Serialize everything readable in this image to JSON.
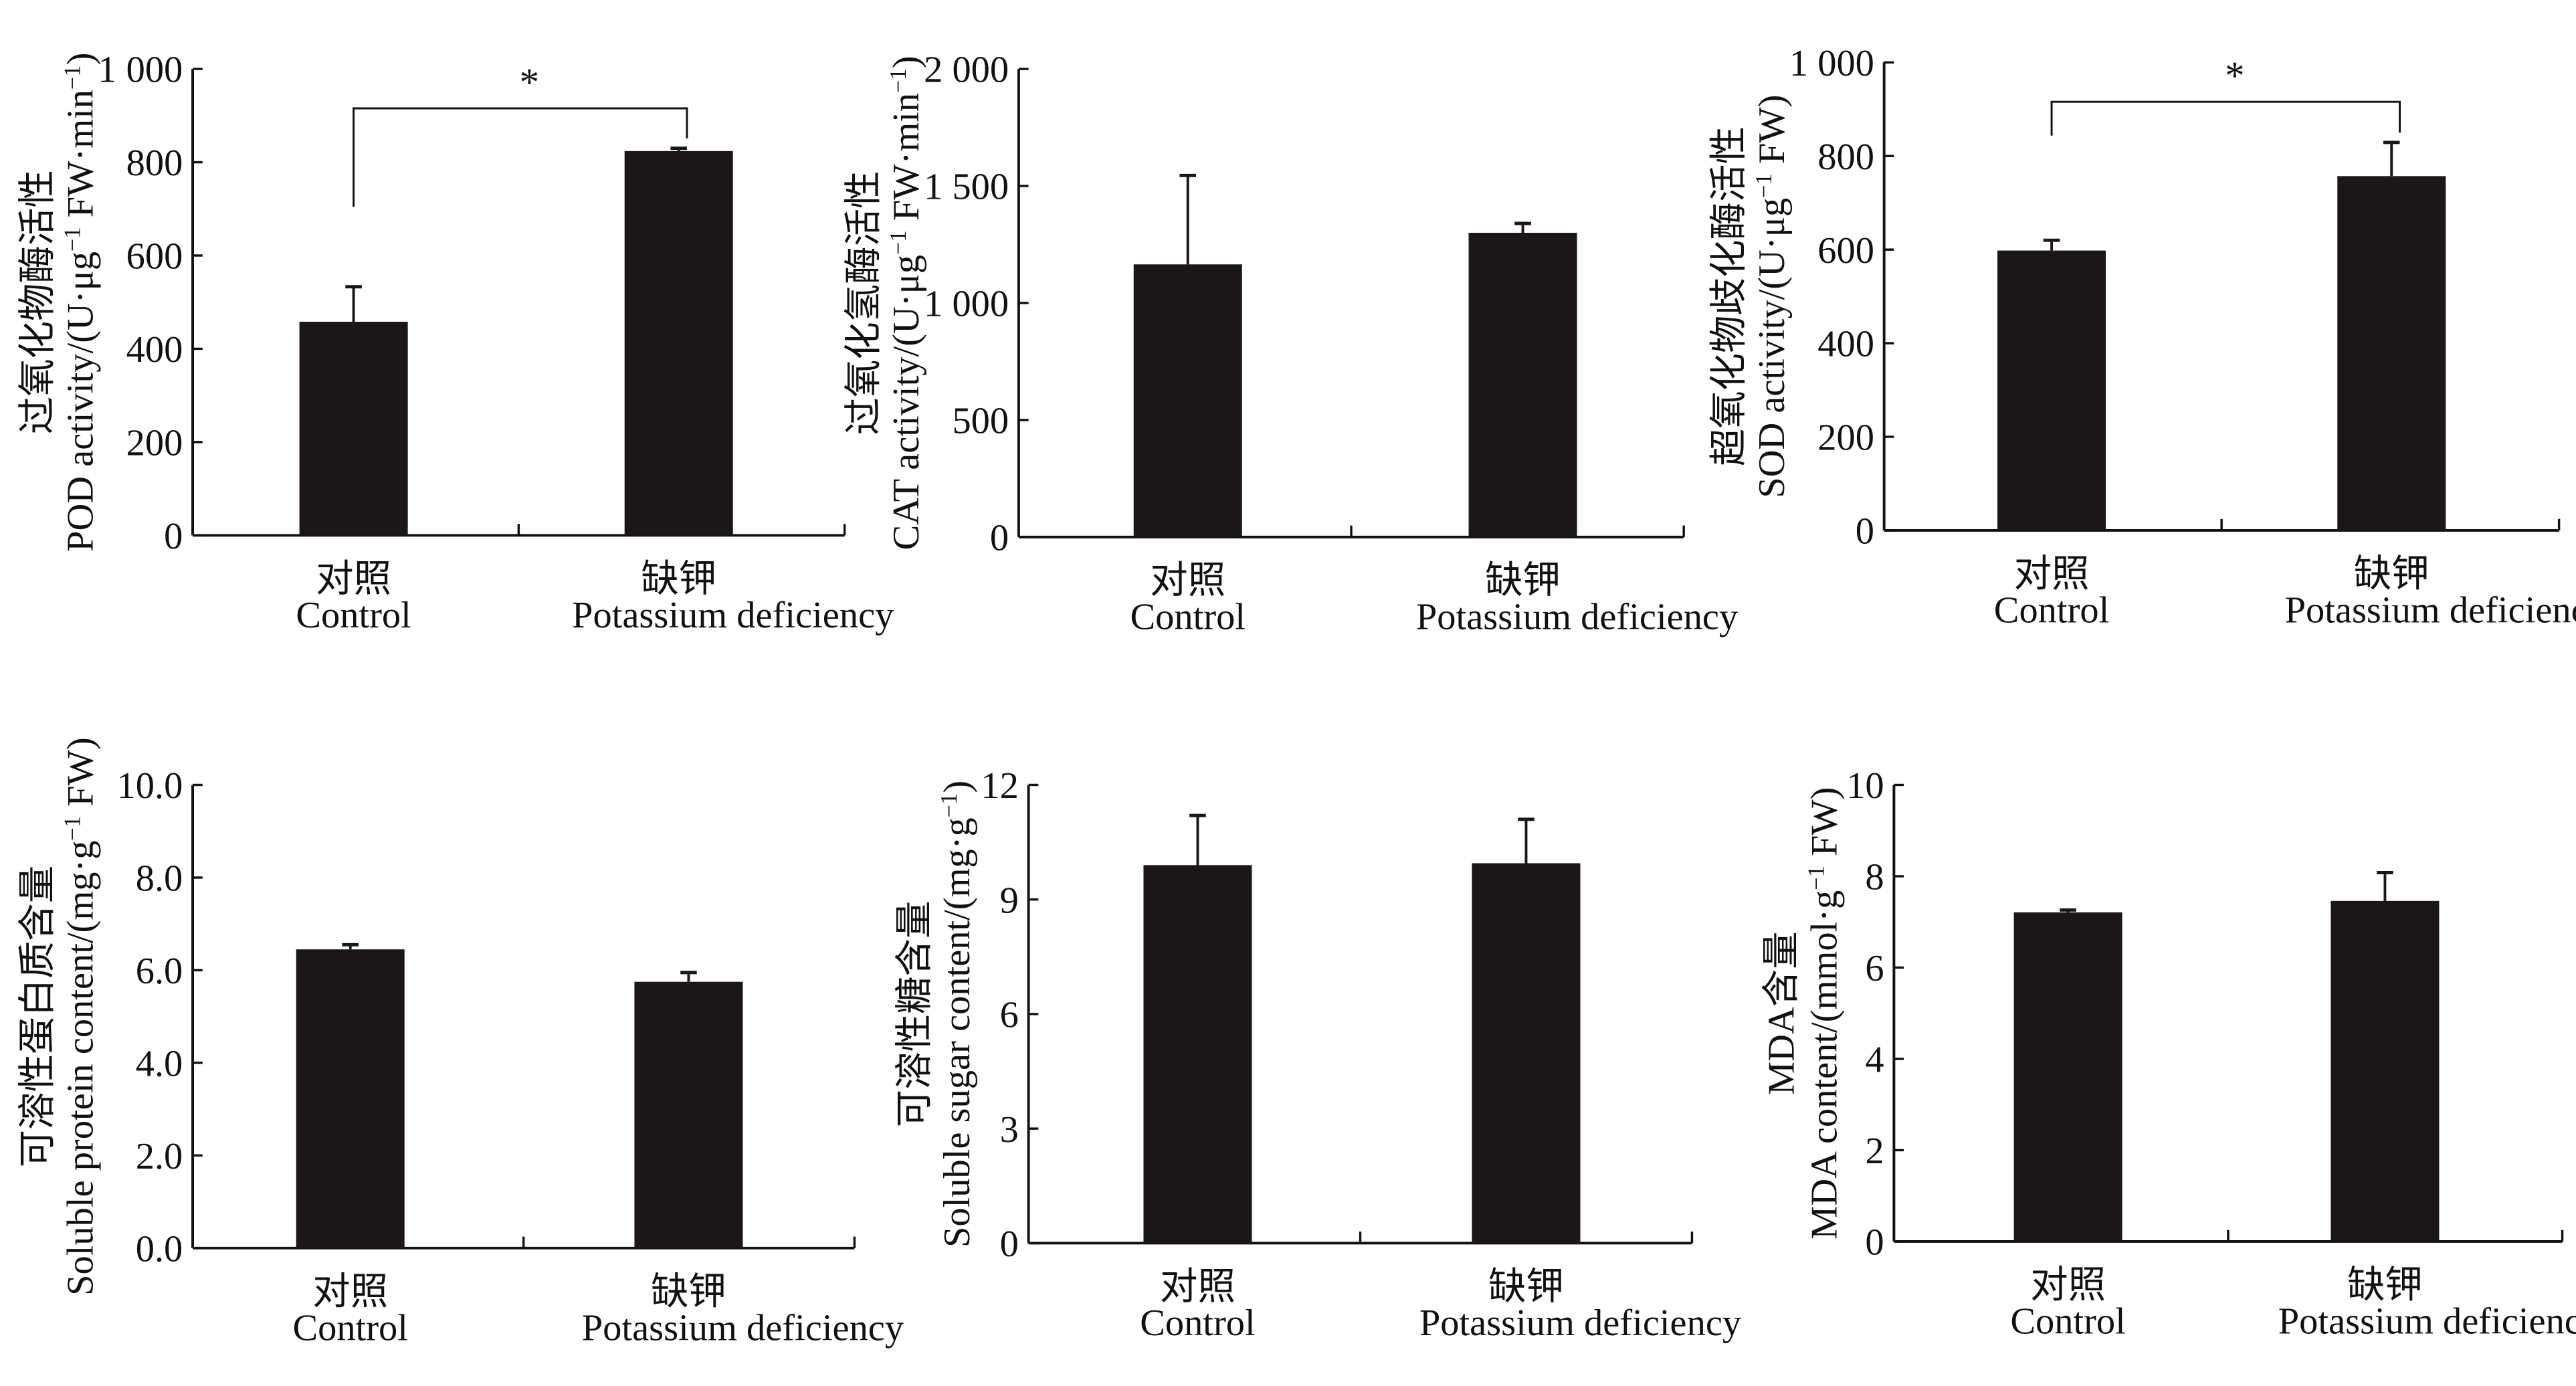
{
  "chart_data": [
    {
      "type": "bar",
      "ylabel_cn": "过氧化物酶活性",
      "ylabel_en": "POD activity/(U·μg",
      "ylabel_sup": "−1",
      "ylabel_en2": " FW·min",
      "ylabel_sup2": "−1",
      "ylabel_end": ")",
      "categories_cn": [
        "对照",
        "缺钾"
      ],
      "categories": [
        "Control",
        "Potassium deficiency"
      ],
      "values": [
        458,
        824
      ],
      "errors": [
        75,
        6
      ],
      "ylim": [
        0,
        1000
      ],
      "yticks": [
        0,
        200,
        400,
        600,
        800,
        1000
      ],
      "ytick_labels": [
        "0",
        "200",
        "400",
        "600",
        "800",
        "1 000"
      ],
      "significance": "*"
    },
    {
      "type": "bar",
      "ylabel_cn": "过氧化氢酶活性",
      "ylabel_en": "CAT activity/(U·μg",
      "ylabel_sup": "−1",
      "ylabel_en2": " FW·min",
      "ylabel_sup2": "−1",
      "ylabel_end": ")",
      "categories_cn": [
        "对照",
        "缺钾"
      ],
      "categories": [
        "Control",
        "Potassium deficiency"
      ],
      "values": [
        1165,
        1300
      ],
      "errors": [
        380,
        40
      ],
      "ylim": [
        0,
        2000
      ],
      "yticks": [
        0,
        500,
        1000,
        1500,
        2000
      ],
      "ytick_labels": [
        "0",
        "500",
        "1 000",
        "1 500",
        "2 000"
      ],
      "significance": ""
    },
    {
      "type": "bar",
      "ylabel_cn": "超氧化物歧化酶活性",
      "ylabel_en": "SOD activity/(U·μg",
      "ylabel_sup": "−1",
      "ylabel_en2": " FW)",
      "ylabel_sup2": "",
      "ylabel_end": "",
      "categories_cn": [
        "对照",
        "缺钾"
      ],
      "categories": [
        "Control",
        "Potassium deficiency"
      ],
      "values": [
        598,
        757
      ],
      "errors": [
        22,
        72
      ],
      "ylim": [
        0,
        1000
      ],
      "yticks": [
        0,
        200,
        400,
        600,
        800,
        1000
      ],
      "ytick_labels": [
        "0",
        "200",
        "400",
        "600",
        "800",
        "1 000"
      ],
      "significance": "*"
    },
    {
      "type": "bar",
      "ylabel_cn": "可溶性蛋白质含量",
      "ylabel_en": "Soluble protein content/(mg·g",
      "ylabel_sup": "−1",
      "ylabel_en2": " FW)",
      "ylabel_sup2": "",
      "ylabel_end": "",
      "categories_cn": [
        "对照",
        "缺钾"
      ],
      "categories": [
        "Control",
        "Potassium deficiency"
      ],
      "values": [
        6.45,
        5.75
      ],
      "errors": [
        0.1,
        0.2
      ],
      "ylim": [
        0,
        10
      ],
      "yticks": [
        0,
        2,
        4,
        6,
        8,
        10
      ],
      "ytick_labels": [
        "0.0",
        "2.0",
        "4.0",
        "6.0",
        "8.0",
        "10.0"
      ],
      "significance": ""
    },
    {
      "type": "bar",
      "ylabel_cn": "可溶性糖含量",
      "ylabel_en": "Soluble sugar content/(mg·g",
      "ylabel_sup": "−1",
      "ylabel_en2": ")",
      "ylabel_sup2": "",
      "ylabel_end": "",
      "categories_cn": [
        "对照",
        "缺钾"
      ],
      "categories": [
        "Control",
        "Potassium deficiency"
      ],
      "values": [
        9.9,
        9.95
      ],
      "errors": [
        1.3,
        1.15
      ],
      "ylim": [
        0,
        12
      ],
      "yticks": [
        0,
        3,
        6,
        9,
        12
      ],
      "ytick_labels": [
        "0",
        "3",
        "6",
        "9",
        "12"
      ],
      "significance": ""
    },
    {
      "type": "bar",
      "ylabel_cn": "MDA含量",
      "ylabel_en": "MDA content/(mmol·g",
      "ylabel_sup": "−1",
      "ylabel_en2": " FW)",
      "ylabel_sup2": "",
      "ylabel_end": "",
      "categories_cn": [
        "对照",
        "缺钾"
      ],
      "categories": [
        "Control",
        "Potassium deficiency"
      ],
      "values": [
        7.21,
        7.46
      ],
      "errors": [
        0.05,
        0.62
      ],
      "ylim": [
        0,
        10
      ],
      "yticks": [
        0,
        2,
        4,
        6,
        8,
        10
      ],
      "ytick_labels": [
        "0",
        "2",
        "4",
        "6",
        "8",
        "10"
      ],
      "significance": ""
    }
  ],
  "colors": {
    "bar": "#1a1716",
    "axis": "#111111"
  }
}
